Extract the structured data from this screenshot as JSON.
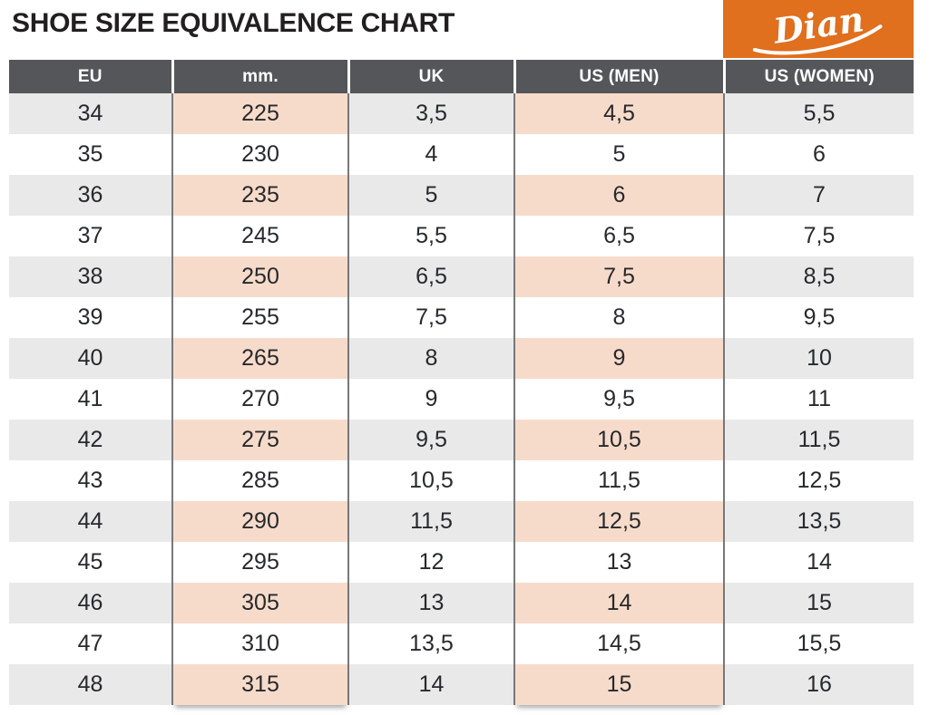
{
  "page": {
    "title": "SHOE SIZE EQUIVALENCE CHART"
  },
  "logo": {
    "brand": "Dian",
    "background_color": "#e06f1e",
    "text_color": "#ffffff"
  },
  "colors": {
    "header_bg": "#54565a",
    "header_text": "#ffffff",
    "alt_row_bg": "#e9e9ea",
    "highlight_column_bg": "#f7dbca",
    "cell_text": "#27292d",
    "column_divider": "#77787a"
  },
  "chart_data": {
    "type": "table",
    "title": "SHOE SIZE EQUIVALENCE CHART",
    "columns": [
      "EU",
      "mm.",
      "UK",
      "US (MEN)",
      "US (WOMEN)"
    ],
    "highlighted_columns": [
      "mm.",
      "US (MEN)"
    ],
    "rows": [
      [
        "34",
        "225",
        "3,5",
        "4,5",
        "5,5"
      ],
      [
        "35",
        "230",
        "4",
        "5",
        "6"
      ],
      [
        "36",
        "235",
        "5",
        "6",
        "7"
      ],
      [
        "37",
        "245",
        "5,5",
        "6,5",
        "7,5"
      ],
      [
        "38",
        "250",
        "6,5",
        "7,5",
        "8,5"
      ],
      [
        "39",
        "255",
        "7,5",
        "8",
        "9,5"
      ],
      [
        "40",
        "265",
        "8",
        "9",
        "10"
      ],
      [
        "41",
        "270",
        "9",
        "9,5",
        "11"
      ],
      [
        "42",
        "275",
        "9,5",
        "10,5",
        "11,5"
      ],
      [
        "43",
        "285",
        "10,5",
        "11,5",
        "12,5"
      ],
      [
        "44",
        "290",
        "11,5",
        "12,5",
        "13,5"
      ],
      [
        "45",
        "295",
        "12",
        "13",
        "14"
      ],
      [
        "46",
        "305",
        "13",
        "14",
        "15"
      ],
      [
        "47",
        "310",
        "13,5",
        "14,5",
        "15,5"
      ],
      [
        "48",
        "315",
        "14",
        "15",
        "16"
      ]
    ]
  }
}
